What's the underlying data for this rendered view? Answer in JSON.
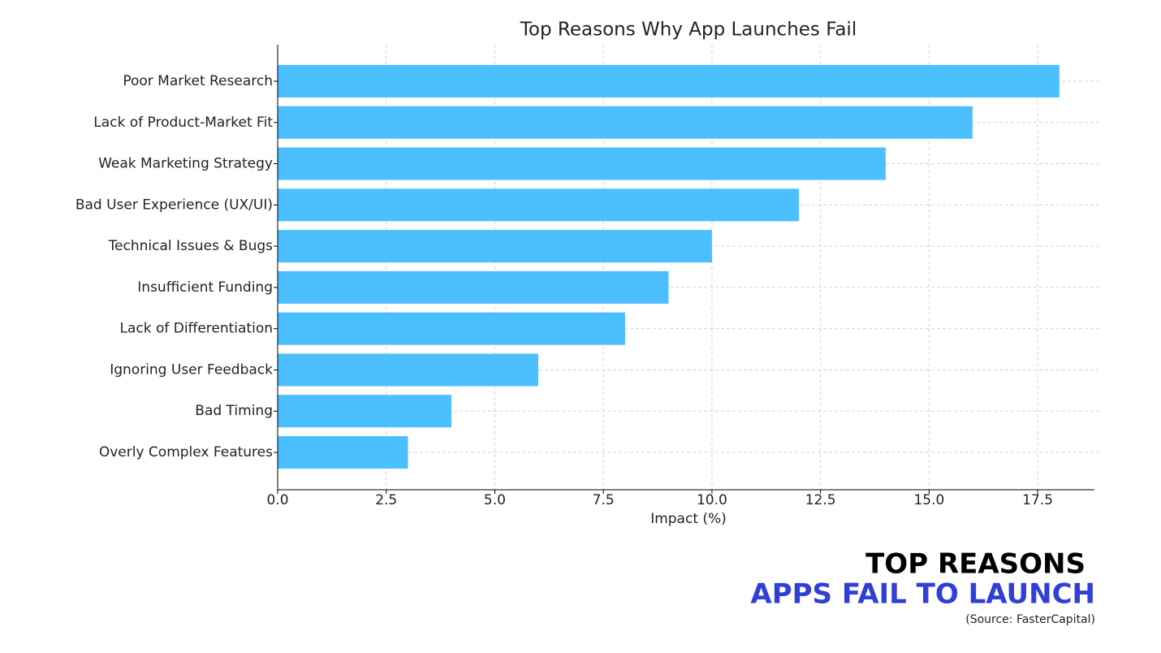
{
  "chart_data": {
    "type": "barh",
    "title": "Top Reasons Why App Launches Fail",
    "x_label": "Impact (%)",
    "categories": [
      "Poor Market Research",
      "Lack of Product-Market Fit",
      "Weak Marketing Strategy",
      "Bad User Experience (UX/UI)",
      "Technical Issues & Bugs",
      "Insufficient Funding",
      "Lack of Differentiation",
      "Ignoring User Feedback",
      "Bad Timing",
      "Overly Complex Features"
    ],
    "values": [
      18,
      16,
      14,
      12,
      10,
      9,
      8,
      6,
      4,
      3
    ],
    "color": "#4bbfff",
    "xlim": [
      0,
      18.9
    ],
    "xticks": [
      {
        "value": 0,
        "label": "0.0"
      },
      2.5,
      {
        "value": 5,
        "label": "5.0"
      },
      7.5,
      {
        "value": 10,
        "label": "10.0"
      },
      12.5,
      {
        "value": 15,
        "label": "15.0"
      },
      17.5
    ],
    "grid": true
  },
  "caption": {
    "line1": "TOP REASONS",
    "line2": "APPS FAIL TO LAUNCH",
    "source": "(Source: FasterCapital)"
  }
}
